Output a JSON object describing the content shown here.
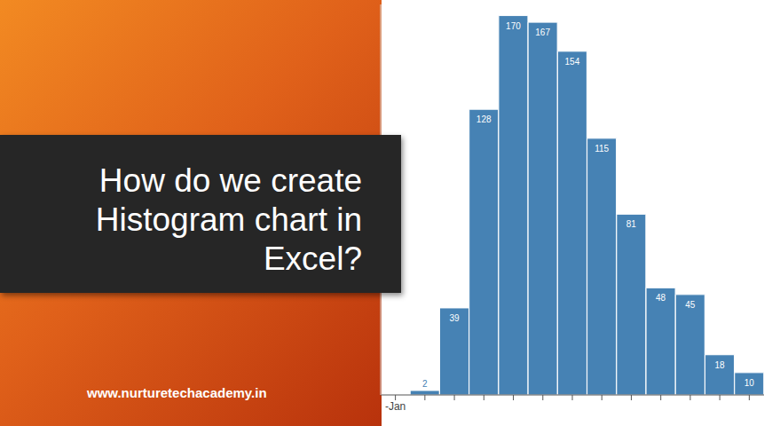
{
  "slide": {
    "title_lines": [
      "How do we create",
      "Histogram chart in",
      "Excel?"
    ],
    "url": "www.nurturetechacademy.in"
  },
  "chart_data": {
    "type": "bar",
    "categories": [
      "-Jan",
      null,
      null,
      null,
      null,
      null,
      null,
      null,
      null,
      null,
      null,
      null,
      null
    ],
    "values": [
      null,
      2,
      39,
      128,
      170,
      167,
      154,
      115,
      81,
      48,
      45,
      18,
      10
    ],
    "color": "#4682b4",
    "ylim": [
      0,
      175
    ],
    "grid": false,
    "data_labels": true,
    "tick_labels": "x"
  }
}
